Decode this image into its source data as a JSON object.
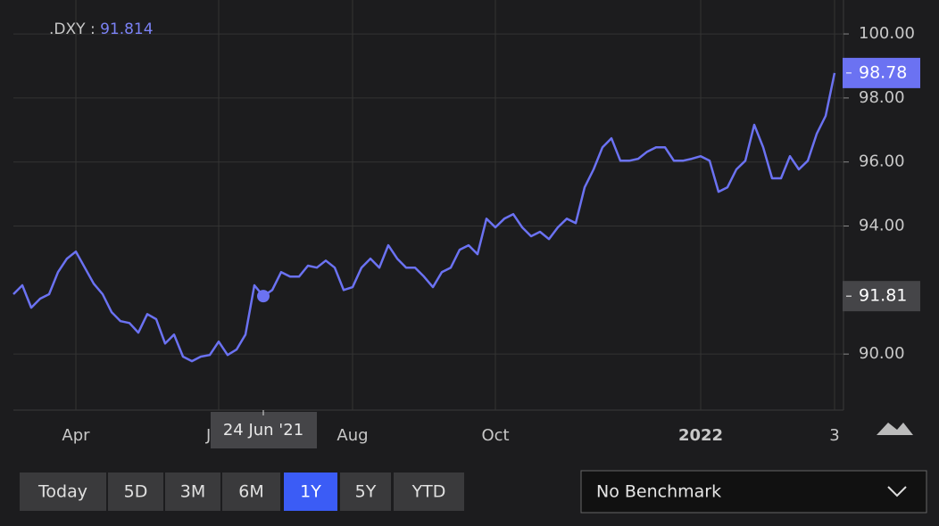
{
  "chart_data": {
    "type": "line",
    "header": {
      "separator": ":",
      "readout": 91.814
    },
    "categories": [
      null,
      null,
      null,
      null,
      null,
      null,
      null,
      "Apr",
      null,
      null,
      null,
      null,
      null,
      null,
      null,
      null,
      null,
      null,
      null,
      null,
      null,
      null,
      null,
      "Jun",
      null,
      null,
      null,
      null,
      null,
      null,
      null,
      null,
      null,
      null,
      null,
      null,
      null,
      null,
      "Aug",
      null,
      null,
      null,
      null,
      null,
      null,
      null,
      null,
      null,
      null,
      null,
      null,
      null,
      null,
      null,
      "Oct",
      null,
      null,
      null,
      null,
      null,
      null,
      null,
      null,
      null,
      null,
      null,
      null,
      null,
      null,
      null,
      null,
      null,
      null,
      null,
      null,
      null,
      null,
      "2022",
      null,
      null,
      null,
      null,
      null,
      null,
      null,
      null,
      null,
      null,
      null,
      null,
      null,
      null,
      "3"
    ],
    "series": [
      {
        "name": ".DXY",
        "color": "#6b72f2",
        "values": [
          91.87,
          92.15,
          91.45,
          91.73,
          91.87,
          92.56,
          92.98,
          93.2,
          92.7,
          92.2,
          91.87,
          91.31,
          91.03,
          90.97,
          90.67,
          91.25,
          91.09,
          90.33,
          90.61,
          89.92,
          89.78,
          89.92,
          89.97,
          90.39,
          89.97,
          90.14,
          90.61,
          92.15,
          91.81,
          92.0,
          92.56,
          92.42,
          92.42,
          92.76,
          92.7,
          92.92,
          92.7,
          92.0,
          92.09,
          92.7,
          92.98,
          92.7,
          93.4,
          92.98,
          92.7,
          92.7,
          92.42,
          92.09,
          92.56,
          92.7,
          93.26,
          93.4,
          93.12,
          94.23,
          93.96,
          94.23,
          94.37,
          93.96,
          93.68,
          93.82,
          93.59,
          93.96,
          94.23,
          94.09,
          95.21,
          95.77,
          96.46,
          96.74,
          96.04,
          96.04,
          96.1,
          96.32,
          96.46,
          96.46,
          96.04,
          96.04,
          96.1,
          96.18,
          96.04,
          95.07,
          95.21,
          95.77,
          96.04,
          97.16,
          96.46,
          95.49,
          95.49,
          96.18,
          95.77,
          96.04,
          96.88,
          97.44,
          98.78
        ]
      }
    ],
    "ylim": [
      88.25,
      101.06
    ],
    "yticks": [
      {
        "value": 90,
        "label": "90.00"
      },
      {
        "value": 94,
        "label": "94.00"
      },
      {
        "value": 96,
        "label": "96.00"
      },
      {
        "value": 98,
        "label": "98.00"
      },
      {
        "value": 100,
        "label": "100.00"
      }
    ],
    "grid": true,
    "price_labels": [
      {
        "value": 98.78,
        "label": "98.78",
        "style": "last"
      },
      {
        "value": 91.81,
        "label": "91.81",
        "style": "hover"
      }
    ],
    "tooltip": {
      "index": 28,
      "label": "24 Jun '21"
    }
  },
  "controls": {
    "ranges": [
      "Today",
      "5D",
      "3M",
      "6M",
      "1Y",
      "5Y",
      "YTD"
    ],
    "selected": "1Y",
    "benchmark": "No Benchmark"
  }
}
